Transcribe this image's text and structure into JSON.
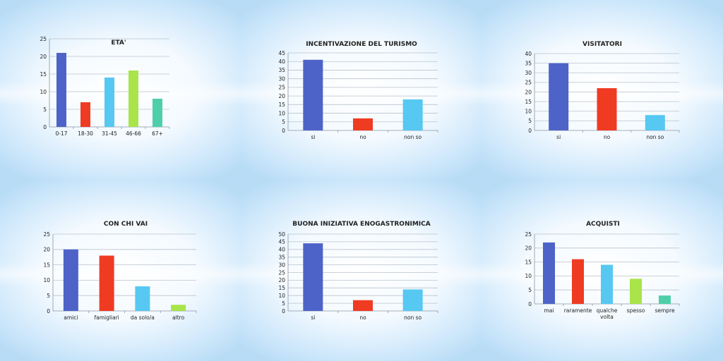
{
  "colors": {
    "blue": "#4e63c8",
    "red": "#ef3b22",
    "cyan": "#56c8f2",
    "green": "#a8e44a",
    "teal": "#4fcfa9",
    "grid": "#b9c3cd",
    "axis": "#8a96a3"
  },
  "chart_data": [
    {
      "type": "bar",
      "title": "ETA'",
      "categories": [
        "0-17",
        "18-30",
        "31-45",
        "46-66",
        "67+"
      ],
      "values": [
        21,
        7,
        14,
        16,
        8
      ],
      "colors": [
        "#4e63c8",
        "#ef3b22",
        "#56c8f2",
        "#a8e44a",
        "#4fcfa9"
      ],
      "ylim": [
        0,
        25
      ],
      "ystep": 5,
      "grid": true,
      "legend": "none"
    },
    {
      "type": "bar",
      "title": "INCENTIVAZIONE DEL TURISMO",
      "categories": [
        "si",
        "no",
        "non so"
      ],
      "values": [
        41,
        7,
        18
      ],
      "colors": [
        "#4e63c8",
        "#ef3b22",
        "#56c8f2"
      ],
      "ylim": [
        0,
        45
      ],
      "ystep": 5,
      "grid": true,
      "legend": "none"
    },
    {
      "type": "bar",
      "title": "VISITATORI",
      "categories": [
        "si",
        "no",
        "non so"
      ],
      "values": [
        35,
        22,
        8
      ],
      "colors": [
        "#4e63c8",
        "#ef3b22",
        "#56c8f2"
      ],
      "ylim": [
        0,
        40
      ],
      "ystep": 5,
      "grid": true,
      "legend": "none"
    },
    {
      "type": "bar",
      "title": "CON CHI VAI",
      "categories": [
        "amici",
        "famigliari",
        "da solo/a",
        "altro"
      ],
      "values": [
        20,
        18,
        8,
        2
      ],
      "colors": [
        "#4e63c8",
        "#ef3b22",
        "#56c8f2",
        "#a8e44a"
      ],
      "ylim": [
        0,
        25
      ],
      "ystep": 5,
      "grid": true,
      "legend": "none"
    },
    {
      "type": "bar",
      "title": "BUONA INIZIATIVA ENOGASTRONIMICA",
      "categories": [
        "si",
        "no",
        "non so"
      ],
      "values": [
        44,
        7,
        14
      ],
      "colors": [
        "#4e63c8",
        "#ef3b22",
        "#56c8f2"
      ],
      "ylim": [
        0,
        50
      ],
      "ystep": 5,
      "grid": true,
      "legend": "none"
    },
    {
      "type": "bar",
      "title": "ACQUISTI",
      "categories": [
        "mai",
        "raramente",
        "qualche volta",
        "spesso",
        "sempre"
      ],
      "values": [
        22,
        16,
        14,
        9,
        3
      ],
      "colors": [
        "#4e63c8",
        "#ef3b22",
        "#56c8f2",
        "#a8e44a",
        "#4fcfa9"
      ],
      "ylim": [
        0,
        25
      ],
      "ystep": 5,
      "grid": true,
      "legend": "none"
    }
  ]
}
